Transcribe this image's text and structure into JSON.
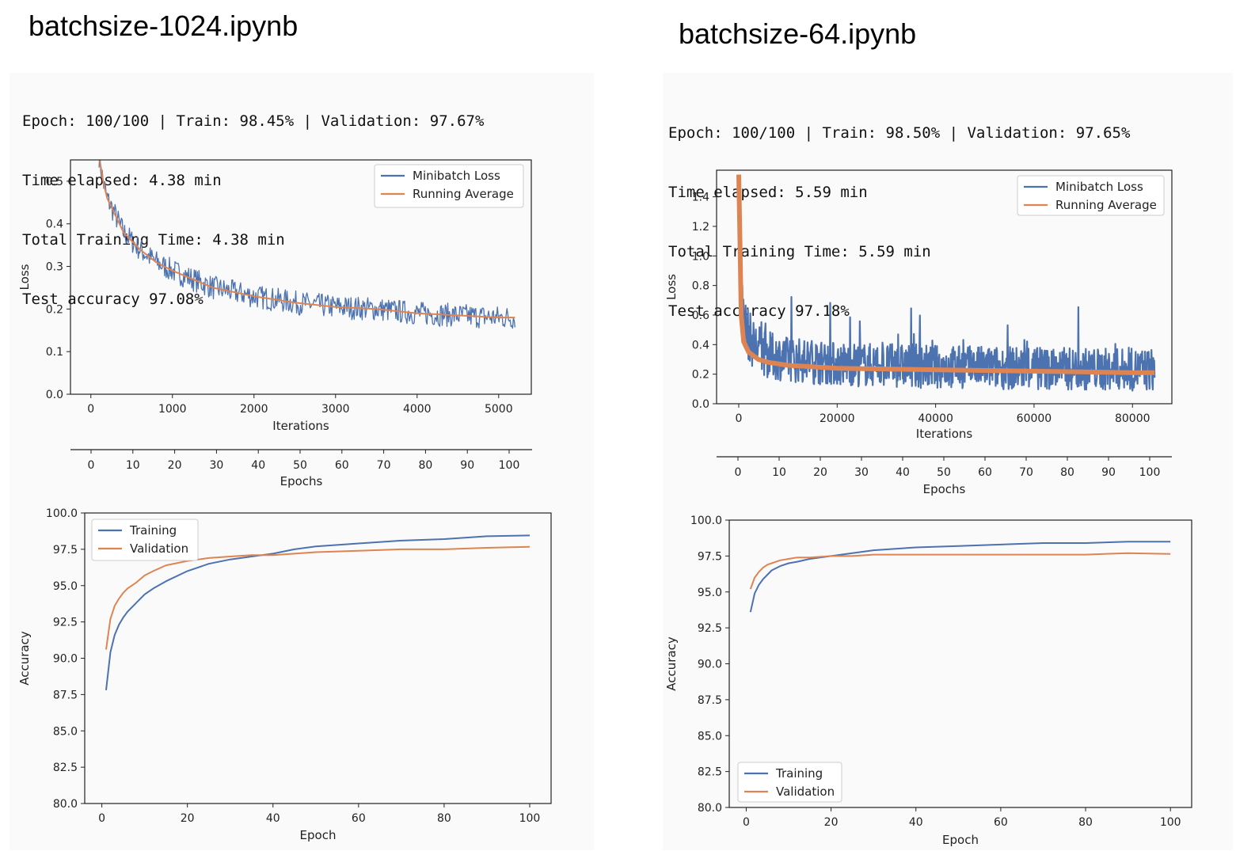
{
  "colors": {
    "series_blue": "#4c72b0",
    "series_orange": "#dd8452",
    "axis": "#222222"
  },
  "panels": [
    {
      "title": "batchsize-1024.ipynb",
      "stdout": [
        "Epoch: 100/100 | Train: 98.45% | Validation: 97.67%",
        "Time elapsed: 4.38 min",
        "Total Training Time: 4.38 min",
        "Test accuracy 97.08%"
      ]
    },
    {
      "title": "batchsize-64.ipynb",
      "stdout": [
        "Epoch: 100/100 | Train: 98.50% | Validation: 97.65%",
        "Time elapsed: 5.59 min",
        "Total Training Time: 5.59 min",
        "Test accuracy 97.18%"
      ]
    }
  ],
  "chart_data": [
    {
      "type": "line",
      "notebook": "batchsize-1024.ipynb",
      "xlabel": "Iterations",
      "ylabel": "Loss",
      "secondary_xlabel": "Epochs",
      "xlim": [
        -250,
        5400
      ],
      "ylim": [
        0.0,
        0.55
      ],
      "xticks": [
        0,
        1000,
        2000,
        3000,
        4000,
        5000
      ],
      "xtick_labels": [
        "0",
        "1000",
        "2000",
        "3000",
        "4000",
        "5000"
      ],
      "yticks": [
        0.0,
        0.1,
        0.2,
        0.3,
        0.4,
        0.5
      ],
      "ytick_labels": [
        "0.0",
        "0.1",
        "0.2",
        "0.3",
        "0.4",
        "0.5"
      ],
      "secondary_ticks": [
        "0",
        "10",
        "20",
        "30",
        "40",
        "50",
        "60",
        "70",
        "80",
        "90",
        "100"
      ],
      "legend_position": "upper right",
      "grid": false,
      "series": [
        {
          "name": "Minibatch Loss",
          "color": "#4c72b0",
          "noise": 0.028,
          "x": [
            100,
            150,
            200,
            300,
            400,
            600,
            800,
            1000,
            1500,
            2000,
            2500,
            3000,
            3500,
            4000,
            4500,
            5000,
            5200
          ],
          "y": [
            0.56,
            0.5,
            0.46,
            0.42,
            0.38,
            0.34,
            0.31,
            0.29,
            0.25,
            0.23,
            0.215,
            0.205,
            0.2,
            0.19,
            0.185,
            0.18,
            0.18
          ]
        },
        {
          "name": "Running Average",
          "color": "#dd8452",
          "x": [
            100,
            150,
            200,
            300,
            400,
            600,
            800,
            1000,
            1500,
            2000,
            2500,
            3000,
            3500,
            4000,
            4500,
            5000,
            5200
          ],
          "y": [
            0.56,
            0.5,
            0.46,
            0.42,
            0.38,
            0.34,
            0.31,
            0.29,
            0.25,
            0.23,
            0.215,
            0.205,
            0.2,
            0.19,
            0.185,
            0.18,
            0.18
          ]
        }
      ]
    },
    {
      "type": "line",
      "notebook": "batchsize-1024.ipynb",
      "xlabel": "Epoch",
      "ylabel": "Accuracy",
      "xlim": [
        -4,
        105
      ],
      "ylim": [
        80.0,
        100.0
      ],
      "xticks": [
        0,
        20,
        40,
        60,
        80,
        100
      ],
      "xtick_labels": [
        "0",
        "20",
        "40",
        "60",
        "80",
        "100"
      ],
      "yticks": [
        80.0,
        82.5,
        85.0,
        87.5,
        90.0,
        92.5,
        95.0,
        97.5,
        100.0
      ],
      "ytick_labels": [
        "80.0",
        "82.5",
        "85.0",
        "87.5",
        "90.0",
        "92.5",
        "95.0",
        "97.5",
        "100.0"
      ],
      "legend_position": "upper left",
      "grid": false,
      "series": [
        {
          "name": "Training",
          "color": "#4c72b0",
          "x": [
            1,
            2,
            3,
            4,
            5,
            6,
            8,
            10,
            12,
            15,
            20,
            25,
            30,
            35,
            40,
            45,
            50,
            60,
            70,
            80,
            90,
            100
          ],
          "y": [
            87.8,
            90.4,
            91.6,
            92.3,
            92.8,
            93.2,
            93.8,
            94.4,
            94.8,
            95.3,
            96.0,
            96.5,
            96.8,
            97.0,
            97.2,
            97.5,
            97.7,
            97.9,
            98.1,
            98.2,
            98.4,
            98.45
          ]
        },
        {
          "name": "Validation",
          "color": "#dd8452",
          "x": [
            1,
            2,
            3,
            4,
            5,
            6,
            8,
            10,
            12,
            15,
            20,
            25,
            30,
            35,
            40,
            45,
            50,
            60,
            70,
            80,
            90,
            100
          ],
          "y": [
            90.6,
            92.7,
            93.6,
            94.1,
            94.5,
            94.8,
            95.2,
            95.7,
            96.0,
            96.4,
            96.7,
            96.9,
            97.0,
            97.1,
            97.1,
            97.2,
            97.3,
            97.4,
            97.5,
            97.5,
            97.6,
            97.67
          ]
        }
      ]
    },
    {
      "type": "line",
      "notebook": "batchsize-64.ipynb",
      "xlabel": "Iterations",
      "ylabel": "Loss",
      "secondary_xlabel": "Epochs",
      "xlim": [
        -4500,
        88000
      ],
      "ylim": [
        0.0,
        1.58
      ],
      "xticks": [
        0,
        20000,
        40000,
        60000,
        80000
      ],
      "xtick_labels": [
        "0",
        "20000",
        "40000",
        "60000",
        "80000"
      ],
      "yticks": [
        0.0,
        0.2,
        0.4,
        0.6,
        0.8,
        1.0,
        1.2,
        1.4
      ],
      "ytick_labels": [
        "0.0",
        "0.2",
        "0.4",
        "0.6",
        "0.8",
        "1.0",
        "1.2",
        "1.4"
      ],
      "secondary_ticks": [
        "0",
        "10",
        "20",
        "30",
        "40",
        "50",
        "60",
        "70",
        "80",
        "90",
        "100"
      ],
      "legend_position": "upper right",
      "grid": false,
      "series": [
        {
          "name": "Minibatch Loss",
          "color": "#4c72b0",
          "noise": 0.14,
          "x": [
            0,
            500,
            1500,
            3000,
            6000,
            10000,
            20000,
            40000,
            60000,
            80000,
            84500
          ],
          "y": [
            1.0,
            0.7,
            0.5,
            0.4,
            0.33,
            0.3,
            0.27,
            0.25,
            0.24,
            0.23,
            0.23
          ]
        },
        {
          "name": "Running Average",
          "color": "#dd8452",
          "x": [
            0,
            200,
            500,
            1000,
            2000,
            4000,
            6000,
            10000,
            20000,
            40000,
            60000,
            80000,
            84500
          ],
          "y": [
            1.55,
            1.2,
            0.6,
            0.42,
            0.35,
            0.3,
            0.28,
            0.26,
            0.24,
            0.23,
            0.22,
            0.21,
            0.21
          ]
        }
      ]
    },
    {
      "type": "line",
      "notebook": "batchsize-64.ipynb",
      "xlabel": "Epoch",
      "ylabel": "Accuracy",
      "xlim": [
        -4,
        105
      ],
      "ylim": [
        80.0,
        100.0
      ],
      "xticks": [
        0,
        20,
        40,
        60,
        80,
        100
      ],
      "xtick_labels": [
        "0",
        "20",
        "40",
        "60",
        "80",
        "100"
      ],
      "yticks": [
        80.0,
        82.5,
        85.0,
        87.5,
        90.0,
        92.5,
        95.0,
        97.5,
        100.0
      ],
      "ytick_labels": [
        "80.0",
        "82.5",
        "85.0",
        "87.5",
        "90.0",
        "92.5",
        "95.0",
        "97.5",
        "100.0"
      ],
      "legend_position": "lower left",
      "grid": false,
      "series": [
        {
          "name": "Training",
          "color": "#4c72b0",
          "x": [
            1,
            2,
            3,
            4,
            5,
            6,
            8,
            10,
            12,
            15,
            20,
            25,
            30,
            40,
            50,
            60,
            70,
            80,
            90,
            100
          ],
          "y": [
            93.6,
            94.9,
            95.5,
            95.9,
            96.2,
            96.5,
            96.8,
            97.0,
            97.1,
            97.3,
            97.5,
            97.7,
            97.9,
            98.1,
            98.2,
            98.3,
            98.4,
            98.4,
            98.5,
            98.5
          ]
        },
        {
          "name": "Validation",
          "color": "#dd8452",
          "x": [
            1,
            2,
            3,
            4,
            5,
            6,
            8,
            10,
            12,
            15,
            20,
            25,
            30,
            40,
            50,
            60,
            70,
            80,
            90,
            100
          ],
          "y": [
            95.2,
            96.0,
            96.4,
            96.7,
            96.9,
            97.0,
            97.2,
            97.3,
            97.4,
            97.4,
            97.5,
            97.5,
            97.6,
            97.6,
            97.6,
            97.6,
            97.6,
            97.6,
            97.7,
            97.65
          ]
        }
      ]
    }
  ]
}
